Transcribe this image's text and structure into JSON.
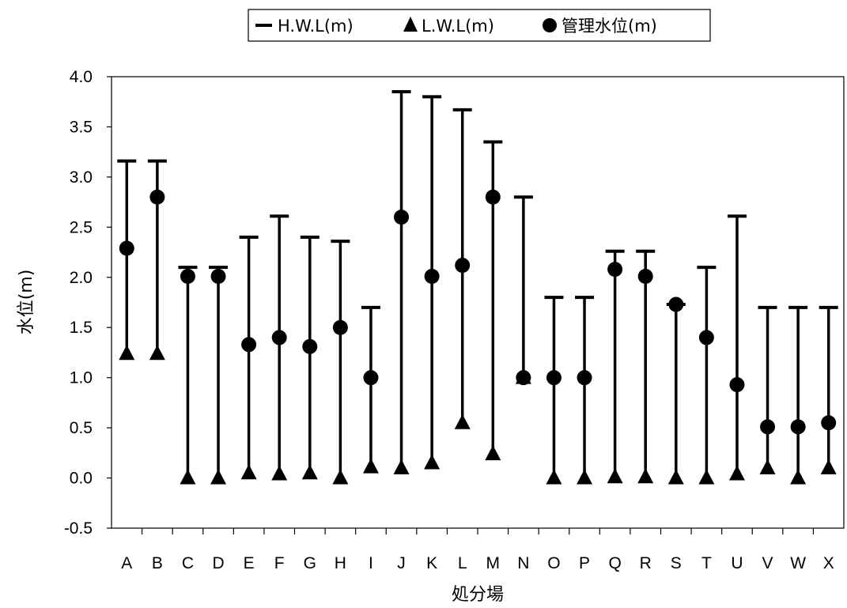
{
  "chart_data": {
    "type": "scatter",
    "title": "",
    "xlabel": "処分場",
    "ylabel": "水位(m)",
    "ylim": [
      -0.5,
      4.0
    ],
    "yticks": [
      "4.0",
      "3.5",
      "3.0",
      "2.5",
      "2.0",
      "1.5",
      "1.0",
      "0.5",
      "0.0",
      "-0.5"
    ],
    "grid": false,
    "legend_position": "top-center",
    "categories": [
      "A",
      "B",
      "C",
      "D",
      "E",
      "F",
      "G",
      "H",
      "I",
      "J",
      "K",
      "L",
      "M",
      "N",
      "O",
      "P",
      "Q",
      "R",
      "S",
      "T",
      "U",
      "V",
      "W",
      "X"
    ],
    "series": [
      {
        "name": "H.W.L(m)",
        "marker": "dash",
        "values": [
          3.16,
          3.16,
          2.1,
          2.1,
          2.4,
          2.61,
          2.4,
          2.36,
          1.7,
          3.85,
          3.8,
          3.67,
          3.35,
          2.8,
          1.8,
          1.8,
          2.26,
          2.26,
          1.73,
          2.1,
          2.61,
          1.7,
          1.7,
          1.7
        ]
      },
      {
        "name": "L.W.L(m)",
        "marker": "triangle",
        "values": [
          1.24,
          1.24,
          0.0,
          0.0,
          0.05,
          0.04,
          0.05,
          0.0,
          0.11,
          0.1,
          0.15,
          0.55,
          0.24,
          1.0,
          0.0,
          0.0,
          0.01,
          0.01,
          0.0,
          0.0,
          0.04,
          0.1,
          0.0,
          0.1
        ]
      },
      {
        "name": "管理水位(m)",
        "marker": "circle",
        "values": [
          2.29,
          2.8,
          2.01,
          2.01,
          1.33,
          1.4,
          1.31,
          1.5,
          1.0,
          2.6,
          2.01,
          2.12,
          2.8,
          1.0,
          1.0,
          1.0,
          2.08,
          2.01,
          1.73,
          1.4,
          0.93,
          0.51,
          0.51,
          0.55
        ]
      }
    ]
  }
}
